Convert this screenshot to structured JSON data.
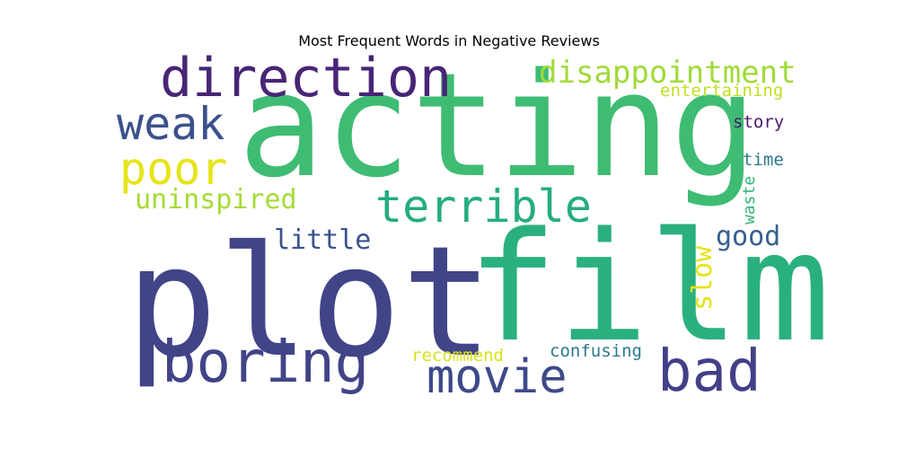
{
  "chart_data": {
    "type": "wordcloud",
    "title": "Most Frequent Words in Negative Reviews",
    "words": [
      {
        "text": "acting",
        "color": "#3fbc73"
      },
      {
        "text": "plot",
        "color": "#414487"
      },
      {
        "text": "film",
        "color": "#2ab07f"
      },
      {
        "text": "direction",
        "color": "#482576"
      },
      {
        "text": "disappointment",
        "color": "#a0da39"
      },
      {
        "text": "entertaining",
        "color": "#c2df23"
      },
      {
        "text": "weak",
        "color": "#3b518b"
      },
      {
        "text": "story",
        "color": "#481a6c"
      },
      {
        "text": "poor",
        "color": "#e7e419"
      },
      {
        "text": "terrible",
        "color": "#25ac82"
      },
      {
        "text": "time",
        "color": "#2a788e"
      },
      {
        "text": "uninspired",
        "color": "#a5db36"
      },
      {
        "text": "waste",
        "color": "#35b779"
      },
      {
        "text": "little",
        "color": "#3b528b"
      },
      {
        "text": "good",
        "color": "#355f8d"
      },
      {
        "text": "slow",
        "color": "#e5e419"
      },
      {
        "text": "boring",
        "color": "#414487"
      },
      {
        "text": "bad",
        "color": "#424086"
      },
      {
        "text": "movie",
        "color": "#3e4989"
      },
      {
        "text": "recommend",
        "color": "#d8e219"
      },
      {
        "text": "confusing",
        "color": "#2a788e"
      }
    ]
  }
}
